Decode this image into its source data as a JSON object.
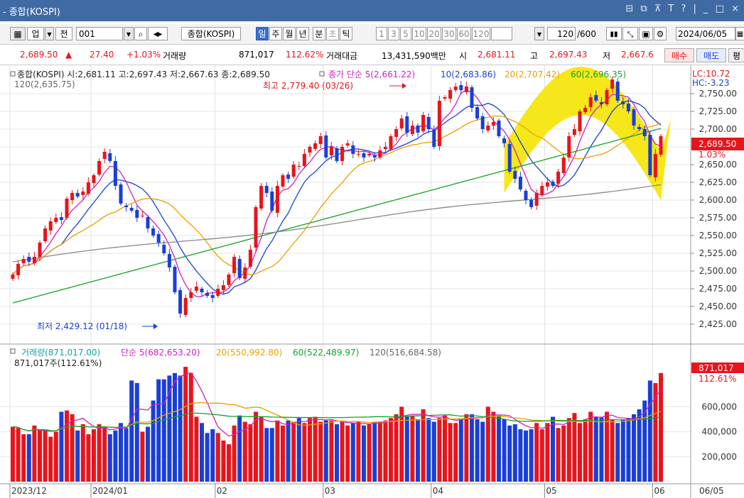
{
  "window": {
    "title": "- 종합(KOSPI)",
    "controls": "⊟ ⧉ ⊼ T ? | _ □ ×"
  },
  "toolbar": {
    "market_type": "업",
    "prev_label": "전",
    "code": "001",
    "name": "종합(KOSPI)",
    "periods": [
      "일",
      "주",
      "월",
      "년",
      "분",
      "초",
      "틱"
    ],
    "selected_period": "일",
    "intervals": [
      "1",
      "3",
      "5",
      "10",
      "20",
      "30",
      "60",
      "120"
    ],
    "count": "120",
    "max_count": "/600",
    "date": "2024/06/05"
  },
  "quote": {
    "price": "2,689.50",
    "arrow": "▲",
    "change": "27.40",
    "change_pct": "+1.03%",
    "volume_label": "거래량",
    "volume": "871,017",
    "volume_pct": "112.62%",
    "value_label": "거래대금",
    "value": "13,431,590백만",
    "open_label": "시",
    "open": "2,681.11",
    "high_label": "고",
    "high": "2,697.43",
    "low_label": "저",
    "low": "2,667.6",
    "buy_label": "매수",
    "sell_label": "매도",
    "extra_label": "평"
  },
  "legend": {
    "price": "종합(KOSPI) 시:2,681.11 고:2,697.43 저:2,667.63 종:2,689.50",
    "ma_title": "종가 단순 5(2,661.22)",
    "ma10": "10(2,683.86)",
    "ma20": "20(2,707.42)",
    "ma60": "60(2,696.35)",
    "ma120": "120(2,635.75)",
    "lc": "LC:10.72",
    "hc": "HC:-3.23",
    "vol_main": "거래량(871,017.00)",
    "vol_ma5": "단순 5(682,653.20)",
    "vol_ma20": "20(550,992.80)",
    "vol_ma60": "60(522,489.97)",
    "vol_ma120": "120(516,684.58)",
    "vol_cur": "871,017주(112.61%)"
  },
  "annotations": {
    "high": "최고 2,779.40 (03/26)",
    "low": "최저 2,429.12 (01/18)",
    "last_price": "2,689.50",
    "last_pct": "1.03%",
    "last_vol": "871,017",
    "last_vol_pct": "112.61%"
  },
  "colors": {
    "up": "#e8141c",
    "down": "#1a3fd6",
    "ma5": "#d020c0",
    "ma10": "#1a3fd6",
    "ma20": "#e8a000",
    "ma60": "#16a02a",
    "ma120": "#888888",
    "highlight": "#f4e400"
  },
  "chart_data": {
    "type": "candlestick",
    "x_labels": [
      "2023/12",
      "2024/01",
      "02",
      "03",
      "04",
      "05",
      "06",
      "06/05"
    ],
    "price_ticks": [
      "2,750.00",
      "2,725.00",
      "2,700.00",
      "2,675.00",
      "2,650.00",
      "2,625.00",
      "2,600.00",
      "2,575.00",
      "2,550.00",
      "2,525.00",
      "2,500.00",
      "2,475.00",
      "2,450.00",
      "2,425.00"
    ],
    "volume_ticks": [
      "600,000",
      "400,000",
      "200,000"
    ],
    "closes": [
      2495,
      2510,
      2517,
      2513,
      2520,
      2540,
      2560,
      2570,
      2575,
      2572,
      2602,
      2610,
      2605,
      2612,
      2625,
      2635,
      2655,
      2668,
      2655,
      2620,
      2595,
      2590,
      2585,
      2575,
      2578,
      2560,
      2550,
      2540,
      2525,
      2505,
      2470,
      2440,
      2462,
      2470,
      2478,
      2470,
      2465,
      2462,
      2475,
      2480,
      2495,
      2520,
      2490,
      2505,
      2530,
      2590,
      2620,
      2610,
      2585,
      2620,
      2635,
      2630,
      2650,
      2648,
      2665,
      2675,
      2680,
      2690,
      2660,
      2675,
      2655,
      2675,
      2680,
      2665,
      2665,
      2660,
      2665,
      2660,
      2670,
      2675,
      2690,
      2700,
      2715,
      2695,
      2705,
      2695,
      2720,
      2700,
      2675,
      2740,
      2745,
      2755,
      2760,
      2755,
      2760,
      2730,
      2715,
      2700,
      2705,
      2710,
      2690,
      2680,
      2640,
      2630,
      2615,
      2600,
      2590,
      2610,
      2620,
      2625,
      2620,
      2640,
      2660,
      2690,
      2700,
      2725,
      2730,
      2745,
      2740,
      2735,
      2755,
      2770,
      2740,
      2735,
      2725,
      2705,
      2700,
      2690,
      2635,
      2665,
      2690
    ],
    "volumes": [
      440,
      430,
      380,
      380,
      450,
      420,
      410,
      360,
      400,
      560,
      570,
      540,
      410,
      460,
      380,
      420,
      460,
      440,
      380,
      410,
      470,
      430,
      810,
      790,
      400,
      440,
      650,
      820,
      820,
      850,
      870,
      850,
      920,
      870,
      520,
      470,
      390,
      420,
      390,
      330,
      300,
      450,
      530,
      480,
      460,
      560,
      520,
      430,
      430,
      490,
      450,
      490,
      480,
      510,
      470,
      510,
      520,
      480,
      490,
      490,
      460,
      480,
      450,
      470,
      480,
      450,
      460,
      480,
      480,
      490,
      510,
      540,
      600,
      520,
      530,
      500,
      580,
      510,
      480,
      510,
      530,
      470,
      470,
      500,
      540,
      540,
      500,
      480,
      600,
      560,
      530,
      500,
      450,
      460,
      420,
      410,
      420,
      470,
      420,
      470,
      520,
      430,
      450,
      510,
      550,
      470,
      500,
      560,
      520,
      520,
      560,
      500,
      470,
      500,
      510,
      540,
      580,
      650,
      810,
      790,
      870
    ]
  }
}
